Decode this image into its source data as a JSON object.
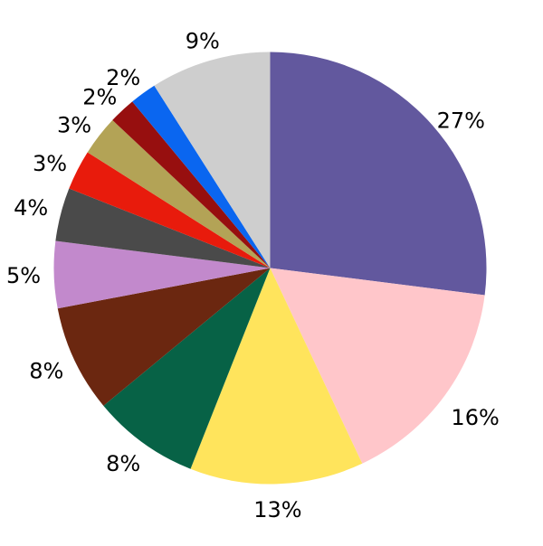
{
  "chart_data": {
    "type": "pie",
    "title": "",
    "background": "#ffffff",
    "label_color": "#000000",
    "start_angle_deg": 90,
    "direction": "clockwise",
    "label_distance": 1.12,
    "legend": "none",
    "slices": [
      {
        "label": "27%",
        "value": 27,
        "color": "#62589E"
      },
      {
        "label": "16%",
        "value": 16,
        "color": "#FFC6CA"
      },
      {
        "label": "13%",
        "value": 13,
        "color": "#FFE45C"
      },
      {
        "label": "8%",
        "value": 8,
        "color": "#076246"
      },
      {
        "label": "8%",
        "value": 8,
        "color": "#6B2710"
      },
      {
        "label": "5%",
        "value": 5,
        "color": "#C289CC"
      },
      {
        "label": "4%",
        "value": 4,
        "color": "#4A4A4A"
      },
      {
        "label": "3%",
        "value": 3,
        "color": "#E81B0C"
      },
      {
        "label": "3%",
        "value": 3,
        "color": "#B3A356"
      },
      {
        "label": "2%",
        "value": 2,
        "color": "#970F0F"
      },
      {
        "label": "2%",
        "value": 2,
        "color": "#0A66F0"
      },
      {
        "label": "9%",
        "value": 9,
        "color": "#CECECE"
      }
    ]
  }
}
